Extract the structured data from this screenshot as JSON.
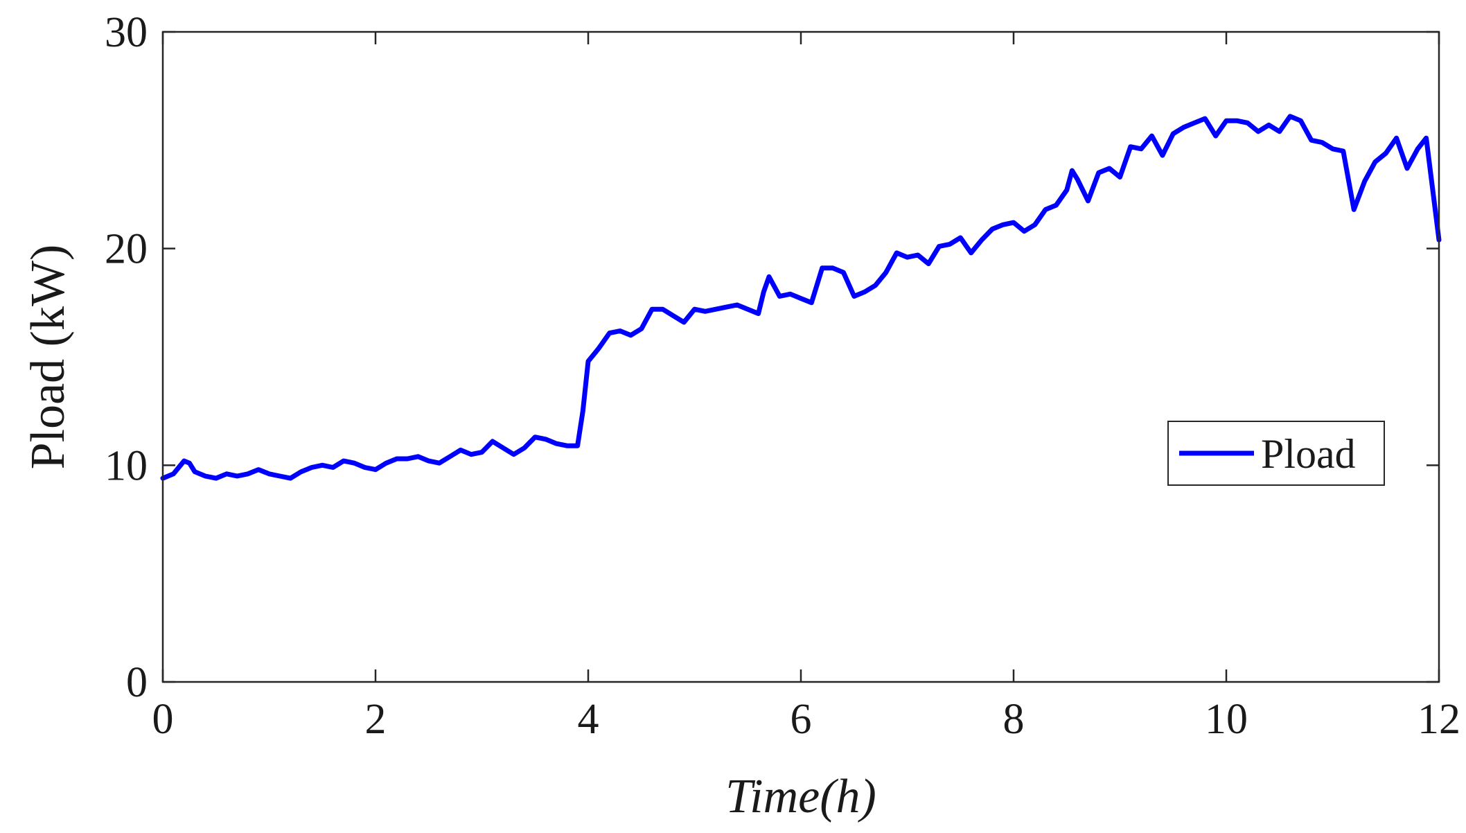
{
  "chart_data": {
    "type": "line",
    "xlabel": "Time(h)",
    "ylabel": "Pload (kW)",
    "xlim": [
      0,
      12
    ],
    "ylim": [
      0,
      30
    ],
    "xticks": [
      0,
      2,
      4,
      6,
      8,
      10,
      12
    ],
    "yticks": [
      0,
      10,
      20,
      30
    ],
    "xtick_labels": [
      "0",
      "2",
      "4",
      "6",
      "8",
      "10",
      "12"
    ],
    "ytick_labels": [
      "0",
      "10",
      "20",
      "30"
    ],
    "grid": false,
    "box": true,
    "legend": {
      "position": "right",
      "entries": [
        "Pload"
      ]
    },
    "series": [
      {
        "name": "Pload",
        "color": "#0000ff",
        "x": [
          0,
          0.1,
          0.2,
          0.25,
          0.3,
          0.4,
          0.5,
          0.6,
          0.7,
          0.8,
          0.9,
          1.0,
          1.1,
          1.2,
          1.3,
          1.4,
          1.5,
          1.6,
          1.7,
          1.8,
          1.9,
          2.0,
          2.1,
          2.2,
          2.3,
          2.4,
          2.5,
          2.6,
          2.7,
          2.8,
          2.9,
          3.0,
          3.1,
          3.2,
          3.3,
          3.4,
          3.5,
          3.6,
          3.7,
          3.8,
          3.9,
          3.95,
          4.0,
          4.05,
          4.1,
          4.2,
          4.3,
          4.4,
          4.5,
          4.6,
          4.7,
          4.8,
          4.9,
          5.0,
          5.1,
          5.2,
          5.3,
          5.4,
          5.5,
          5.6,
          5.65,
          5.7,
          5.8,
          5.9,
          6.0,
          6.1,
          6.2,
          6.3,
          6.4,
          6.5,
          6.6,
          6.7,
          6.8,
          6.9,
          7.0,
          7.1,
          7.2,
          7.3,
          7.4,
          7.5,
          7.6,
          7.7,
          7.8,
          7.9,
          8.0,
          8.1,
          8.2,
          8.3,
          8.4,
          8.5,
          8.55,
          8.6,
          8.7,
          8.8,
          8.9,
          9.0,
          9.1,
          9.2,
          9.3,
          9.4,
          9.5,
          9.6,
          9.7,
          9.8,
          9.9,
          10.0,
          10.1,
          10.2,
          10.3,
          10.4,
          10.5,
          10.6,
          10.7,
          10.8,
          10.9,
          11.0,
          11.1,
          11.2,
          11.3,
          11.4,
          11.5,
          11.6,
          11.7,
          11.8,
          11.88,
          12.0
        ],
        "y": [
          9.4,
          9.6,
          10.2,
          10.1,
          9.7,
          9.5,
          9.4,
          9.6,
          9.5,
          9.6,
          9.8,
          9.6,
          9.5,
          9.4,
          9.7,
          9.9,
          10.0,
          9.9,
          10.2,
          10.1,
          9.9,
          9.8,
          10.1,
          10.3,
          10.3,
          10.4,
          10.2,
          10.1,
          10.4,
          10.7,
          10.5,
          10.6,
          11.1,
          10.8,
          10.5,
          10.8,
          11.3,
          11.2,
          11.0,
          10.9,
          10.9,
          12.5,
          14.8,
          15.1,
          15.4,
          16.1,
          16.2,
          16.0,
          16.3,
          17.2,
          17.2,
          16.9,
          16.6,
          17.2,
          17.1,
          17.2,
          17.3,
          17.4,
          17.2,
          17.0,
          18.0,
          18.7,
          17.8,
          17.9,
          17.7,
          17.5,
          19.1,
          19.1,
          18.9,
          17.8,
          18.0,
          18.3,
          18.9,
          19.8,
          19.6,
          19.7,
          19.3,
          20.1,
          20.2,
          20.5,
          19.8,
          20.4,
          20.9,
          21.1,
          21.2,
          20.8,
          21.1,
          21.8,
          22.0,
          22.7,
          23.6,
          23.2,
          22.2,
          23.5,
          23.7,
          23.3,
          24.7,
          24.6,
          25.2,
          24.3,
          25.3,
          25.6,
          25.8,
          26.0,
          25.2,
          25.9,
          25.9,
          25.8,
          25.4,
          25.7,
          25.4,
          26.1,
          25.9,
          25.0,
          24.9,
          24.6,
          24.5,
          21.8,
          23.1,
          24.0,
          24.4,
          25.1,
          23.7,
          24.6,
          25.1,
          20.4
        ]
      }
    ]
  }
}
